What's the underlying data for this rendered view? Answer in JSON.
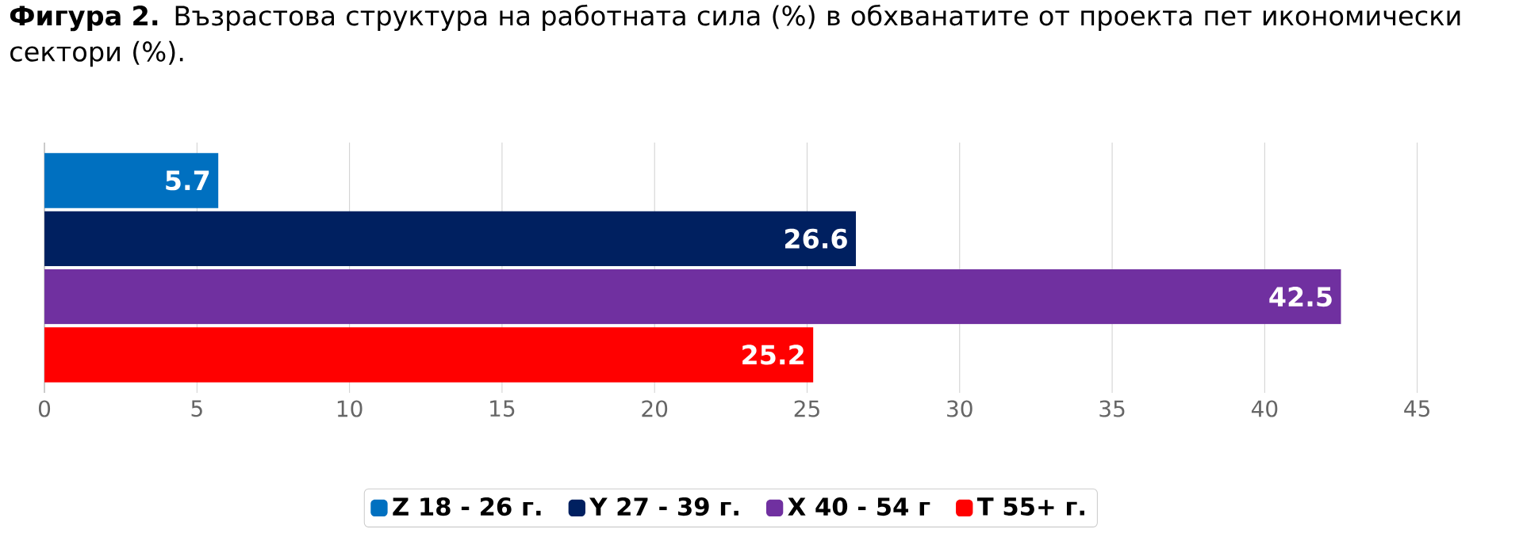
{
  "chart_data": {
    "type": "bar",
    "orientation": "horizontal",
    "title": "**Фигура 2.** Възрастова структура на работната сила (%) в обхванатите от проекта пет икономически сектори (%).",
    "categories": [
      null
    ],
    "series": [
      {
        "name": "Z  18 - 26 г.",
        "color": "#0070c0",
        "values": [
          5.7
        ]
      },
      {
        "name": "Y  27 - 39 г.",
        "color": "#002060",
        "values": [
          26.6
        ]
      },
      {
        "name": "X  40 - 54 г",
        "color": "#7030a0",
        "values": [
          42.5
        ]
      },
      {
        "name": "T  55+ г.",
        "color": "#ff0000",
        "values": [
          25.2
        ]
      }
    ],
    "xlim": [
      0,
      45
    ],
    "xticks": [
      0,
      5,
      10,
      15,
      20,
      25,
      30,
      35,
      40,
      45
    ],
    "grid": "x",
    "legend": "bottom",
    "data_labels": true
  }
}
